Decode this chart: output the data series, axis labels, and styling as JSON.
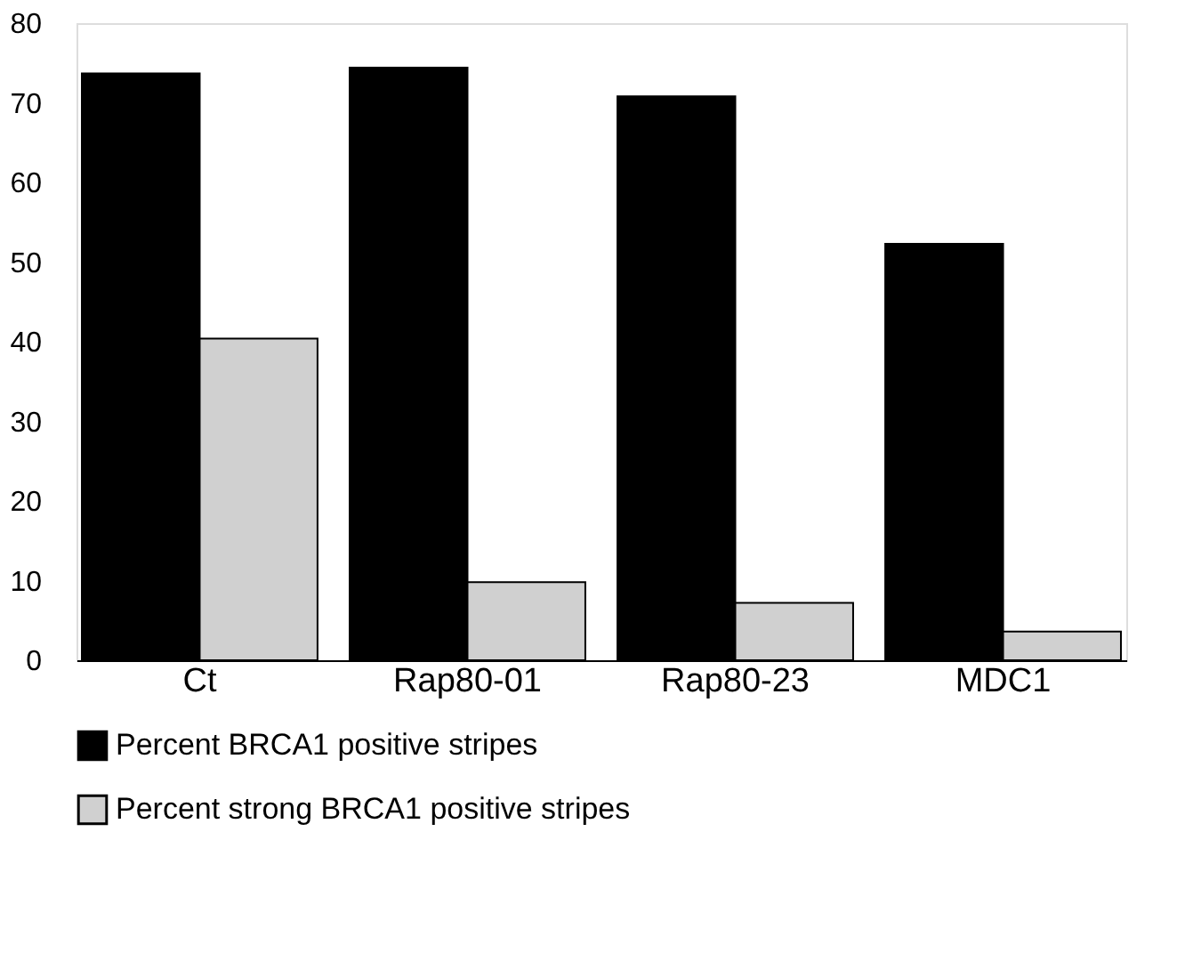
{
  "chart_data": {
    "type": "bar",
    "categories": [
      "Ct",
      "Rap80-01",
      "Rap80-23",
      "MDC1"
    ],
    "series": [
      {
        "name": "Percent BRCA1 positive stripes",
        "color": "#000000",
        "values": [
          73.7,
          74.4,
          70.8,
          52.3
        ]
      },
      {
        "name": "Percent strong BRCA1 positive stripes",
        "color": "#d0d0d0",
        "values": [
          40.4,
          9.8,
          7.2,
          3.6
        ]
      }
    ],
    "ylim": [
      0,
      80
    ],
    "yticks": [
      0,
      10,
      20,
      30,
      40,
      50,
      60,
      70,
      80
    ],
    "grid": false,
    "legend": "bottom"
  }
}
